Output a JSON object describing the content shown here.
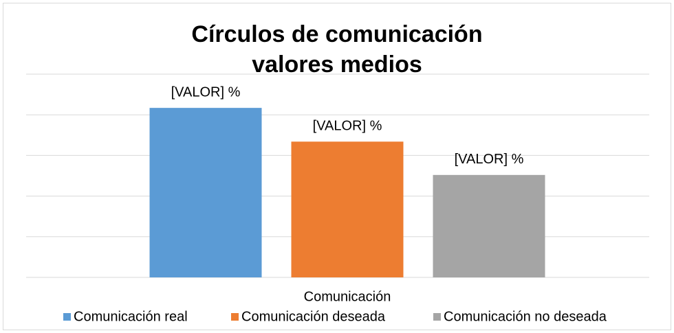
{
  "chart_data": {
    "type": "bar",
    "title": [
      "Círculos de comunicación",
      "valores medios"
    ],
    "categories": [
      "Comunicación"
    ],
    "series": [
      {
        "name": "Comunicación real",
        "color": "#5b9bd5",
        "values": [
          41.7
        ],
        "value_labels": [
          "[VALOR] %"
        ]
      },
      {
        "name": "Comunicación deseada",
        "color": "#ed7d31",
        "values": [
          33.4
        ],
        "value_labels": [
          "[VALOR] %"
        ]
      },
      {
        "name": "Comunicación no deseada",
        "color": "#a5a5a5",
        "values": [
          25.2
        ],
        "value_labels": [
          "[VALOR] %"
        ]
      }
    ],
    "ylim": [
      0,
      50
    ],
    "yticks": [
      0,
      10,
      20,
      30,
      40,
      50
    ],
    "grid": true,
    "legend": "bottom"
  }
}
